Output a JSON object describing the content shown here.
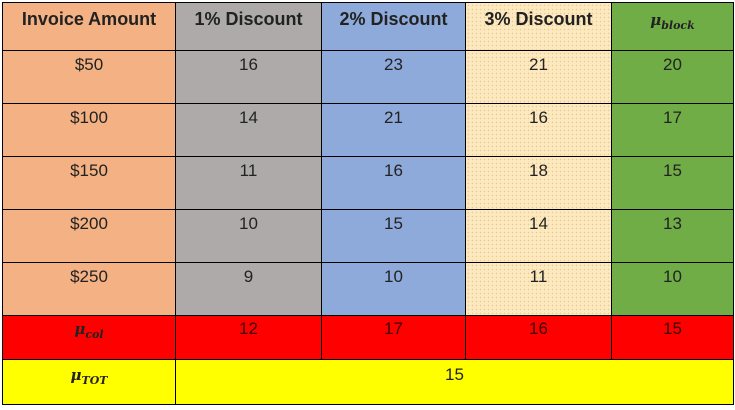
{
  "table": {
    "headers": [
      "Invoice Amount",
      "1% Discount",
      "2% Discount",
      "3% Discount"
    ],
    "mu_block": {
      "symbol": "μ",
      "sub": "block"
    },
    "rows": [
      {
        "amount": "$50",
        "values": [
          "16",
          "23",
          "21"
        ],
        "block_mean": "20"
      },
      {
        "amount": "$100",
        "values": [
          "14",
          "21",
          "16"
        ],
        "block_mean": "17"
      },
      {
        "amount": "$150",
        "values": [
          "11",
          "16",
          "18"
        ],
        "block_mean": "15"
      },
      {
        "amount": "$200",
        "values": [
          "10",
          "15",
          "14"
        ],
        "block_mean": "13"
      },
      {
        "amount": "$250",
        "values": [
          "9",
          "10",
          "11"
        ],
        "block_mean": "10"
      }
    ],
    "mu_col": {
      "symbol": "μ",
      "sub": "col",
      "values": [
        "12",
        "17",
        "16",
        "15"
      ]
    },
    "mu_tot": {
      "symbol": "μ",
      "sub": "TOT",
      "value": "15"
    }
  },
  "colors": {
    "invoice_column": "#f4b183",
    "discount_1": "#aeaaaa",
    "discount_2": "#8eaadb",
    "discount_3": "#fde9bf",
    "block_mean": "#70ad47",
    "column_mean_row": "#ff0000",
    "total_row": "#ffff00"
  }
}
